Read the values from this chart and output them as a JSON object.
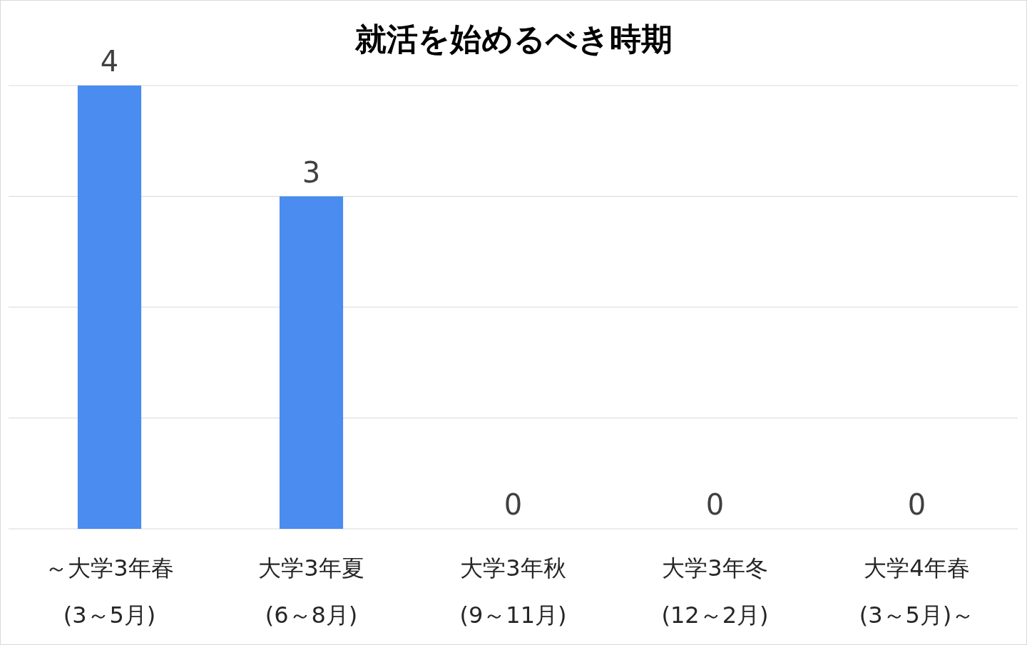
{
  "chart_data": {
    "type": "bar",
    "title": "就活を始めるべき時期",
    "categories": [
      "～大学3年春\n(3～5月)",
      "大学3年夏\n(6～8月)",
      "大学3年秋\n(9～11月)",
      "大学3年冬\n(12～2月)",
      "大学4年春\n(3～5月)～"
    ],
    "values": [
      4,
      3,
      0,
      0,
      0
    ],
    "color": "#4a8cf0",
    "ylim": [
      0,
      4
    ],
    "yticks": [
      {
        "value": 0,
        "label": null
      },
      {
        "value": 1,
        "label": null
      },
      {
        "value": 2,
        "label": null
      },
      {
        "value": 3,
        "label": null
      },
      {
        "value": 4,
        "label": null
      }
    ],
    "grid": "y",
    "tick_labels": "x",
    "data_labels": true
  }
}
